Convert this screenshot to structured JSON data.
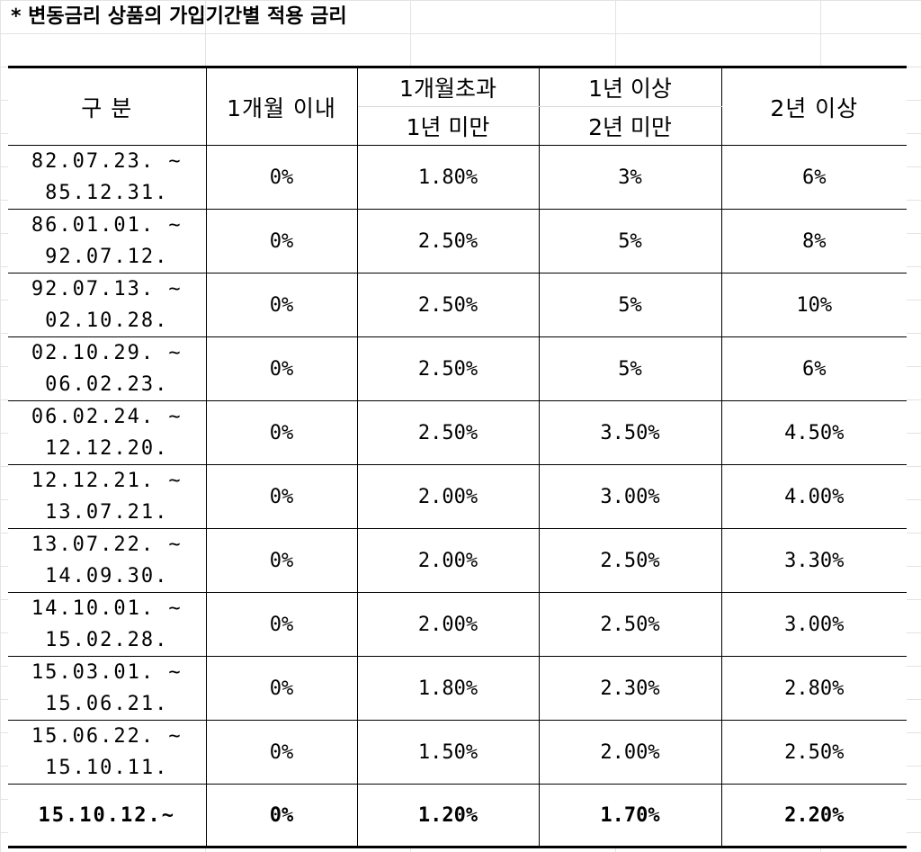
{
  "title": "* 변동금리 상품의 가입기간별 적용 금리",
  "table": {
    "headers": {
      "period": "구 분",
      "within_1m": "1개월 이내",
      "over_1m_top": "1개월초과",
      "over_1m_bottom": "1년 미만",
      "over_1y_top": "1년 이상",
      "over_1y_bottom": "2년 미만",
      "over_2y": "2년 이상"
    },
    "rows": [
      {
        "from": "82.07.23. ~",
        "to": "85.12.31.",
        "r1": "0%",
        "r2": "1.80%",
        "r3": "3%",
        "r4": "6%"
      },
      {
        "from": "86.01.01. ~",
        "to": "92.07.12.",
        "r1": "0%",
        "r2": "2.50%",
        "r3": "5%",
        "r4": "8%"
      },
      {
        "from": "92.07.13. ~",
        "to": "02.10.28.",
        "r1": "0%",
        "r2": "2.50%",
        "r3": "5%",
        "r4": "10%"
      },
      {
        "from": "02.10.29. ~",
        "to": "06.02.23.",
        "r1": "0%",
        "r2": "2.50%",
        "r3": "5%",
        "r4": "6%"
      },
      {
        "from": "06.02.24. ~",
        "to": "12.12.20.",
        "r1": "0%",
        "r2": "2.50%",
        "r3": "3.50%",
        "r4": "4.50%"
      },
      {
        "from": "12.12.21. ~",
        "to": "13.07.21.",
        "r1": "0%",
        "r2": "2.00%",
        "r3": "3.00%",
        "r4": "4.00%"
      },
      {
        "from": "13.07.22. ~",
        "to": "14.09.30.",
        "r1": "0%",
        "r2": "2.00%",
        "r3": "2.50%",
        "r4": "3.30%"
      },
      {
        "from": "14.10.01. ~",
        "to": "15.02.28.",
        "r1": "0%",
        "r2": "2.00%",
        "r3": "2.50%",
        "r4": "3.00%"
      },
      {
        "from": "15.03.01. ~",
        "to": "15.06.21.",
        "r1": "0%",
        "r2": "1.80%",
        "r3": "2.30%",
        "r4": "2.80%"
      },
      {
        "from": "15.06.22. ~",
        "to": "15.10.11.",
        "r1": "0%",
        "r2": "1.50%",
        "r3": "2.00%",
        "r4": "2.50%"
      }
    ],
    "last_row": {
      "period": "15.10.12.~",
      "r1": "0%",
      "r2": "1.20%",
      "r3": "1.70%",
      "r4": "2.20%"
    }
  }
}
